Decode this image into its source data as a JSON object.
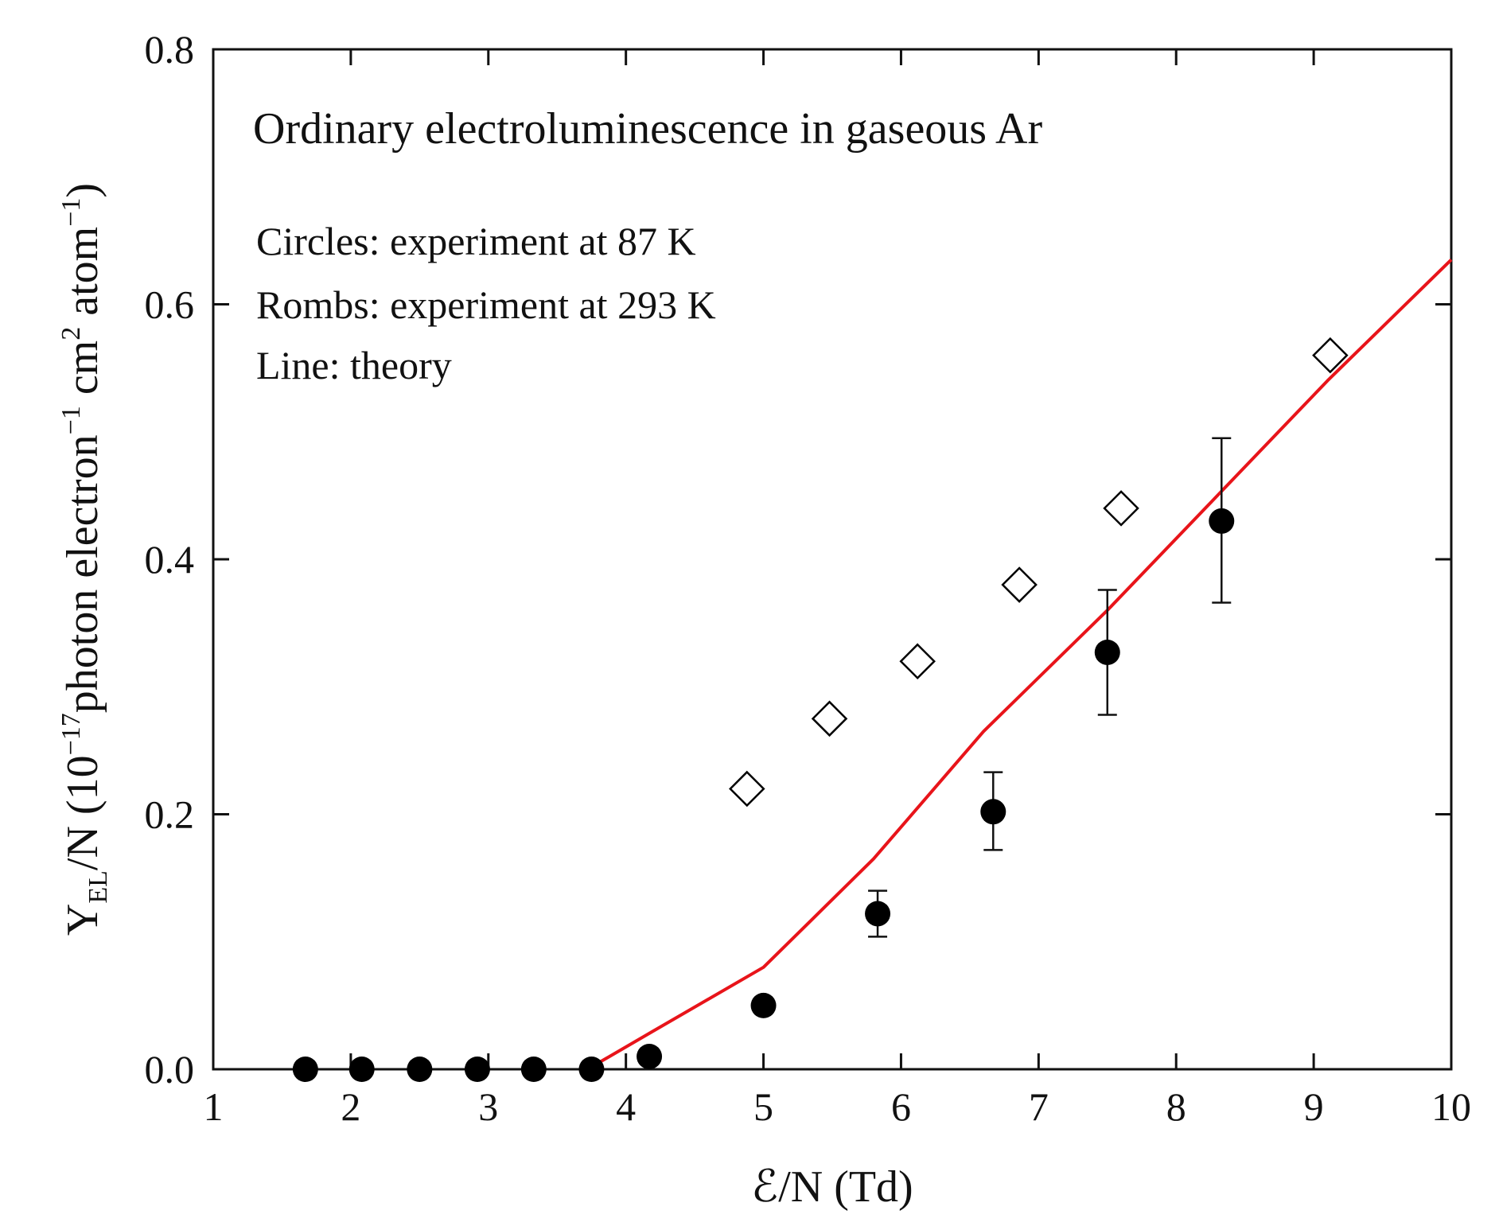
{
  "chart_data": {
    "type": "scatter",
    "title": "",
    "xlabel": {
      "main": "ℰ/N (Td)"
    },
    "ylabel": {
      "parts": [
        "Y",
        "EL",
        "/N (10",
        "−17",
        "photon electron",
        "−1",
        " cm",
        "2",
        " atom",
        "−1",
        ")"
      ]
    },
    "xlim": [
      1,
      10
    ],
    "ylim": [
      0.0,
      0.8
    ],
    "xticks": [
      1,
      2,
      3,
      4,
      5,
      6,
      7,
      8,
      9,
      10
    ],
    "yticks": [
      0.0,
      0.2,
      0.4,
      0.6,
      0.8
    ],
    "xtick_labels": [
      "1",
      "2",
      "3",
      "4",
      "5",
      "6",
      "7",
      "8",
      "9",
      "10"
    ],
    "ytick_labels": [
      "0.0",
      "0.2",
      "0.4",
      "0.6",
      "0.8"
    ],
    "annotations": [
      "Ordinary electroluminescence in gaseous Ar",
      "Circles: experiment at 87 K",
      "Rombs: experiment at 293 K",
      "Line: theory"
    ],
    "series": [
      {
        "name": "experiment at 87 K",
        "marker": "circle-filled",
        "color": "#000000",
        "x": [
          1.67,
          2.08,
          2.5,
          2.92,
          3.33,
          3.75,
          4.17,
          5.0,
          5.83,
          6.67,
          7.5,
          8.33
        ],
        "y": [
          0.0,
          0.0,
          0.0,
          0.0,
          0.0,
          0.0,
          0.01,
          0.05,
          0.122,
          0.202,
          0.327,
          0.43
        ],
        "err_low": [
          null,
          null,
          null,
          null,
          null,
          null,
          null,
          null,
          0.104,
          0.172,
          0.278,
          0.366
        ],
        "err_high": [
          null,
          null,
          null,
          null,
          null,
          null,
          null,
          null,
          0.14,
          0.233,
          0.376,
          0.495
        ]
      },
      {
        "name": "experiment at 293 K",
        "marker": "diamond-open",
        "color": "#000000",
        "x": [
          4.88,
          5.48,
          6.12,
          6.86,
          7.6,
          9.12
        ],
        "y": [
          0.22,
          0.275,
          0.32,
          0.38,
          0.44,
          0.56
        ]
      },
      {
        "name": "theory",
        "marker": "line",
        "color": "#e8141a",
        "x": [
          3.8,
          4.2,
          5.0,
          5.8,
          6.6,
          7.5,
          8.3,
          9.1,
          10.0
        ],
        "y": [
          0.005,
          0.03,
          0.08,
          0.165,
          0.265,
          0.36,
          0.45,
          0.54,
          0.635
        ]
      }
    ]
  }
}
